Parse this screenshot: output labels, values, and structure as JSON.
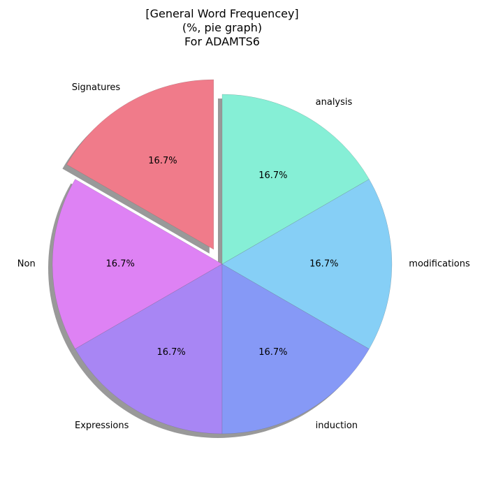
{
  "chart_data": {
    "type": "pie",
    "title_lines": [
      "[General Word Frequencey]",
      "(%, pie graph)",
      "For ADAMTS6"
    ],
    "start_angle_deg": 90,
    "direction": "counterclockwise",
    "shadow": true,
    "slices": [
      {
        "label": "Signatures",
        "value": 16.7,
        "pct_label": "16.7%",
        "color": "#f07b8a",
        "explode": 0.1
      },
      {
        "label": "Non",
        "value": 16.7,
        "pct_label": "16.7%",
        "color": "#de82f4",
        "explode": 0
      },
      {
        "label": "Expressions",
        "value": 16.7,
        "pct_label": "16.7%",
        "color": "#a886f4",
        "explode": 0
      },
      {
        "label": "induction",
        "value": 16.7,
        "pct_label": "16.7%",
        "color": "#8699f6",
        "explode": 0
      },
      {
        "label": "modifications",
        "value": 16.7,
        "pct_label": "16.7%",
        "color": "#86cff6",
        "explode": 0
      },
      {
        "label": "analysis",
        "value": 16.7,
        "pct_label": "16.7%",
        "color": "#86efd6",
        "explode": 0
      }
    ]
  }
}
